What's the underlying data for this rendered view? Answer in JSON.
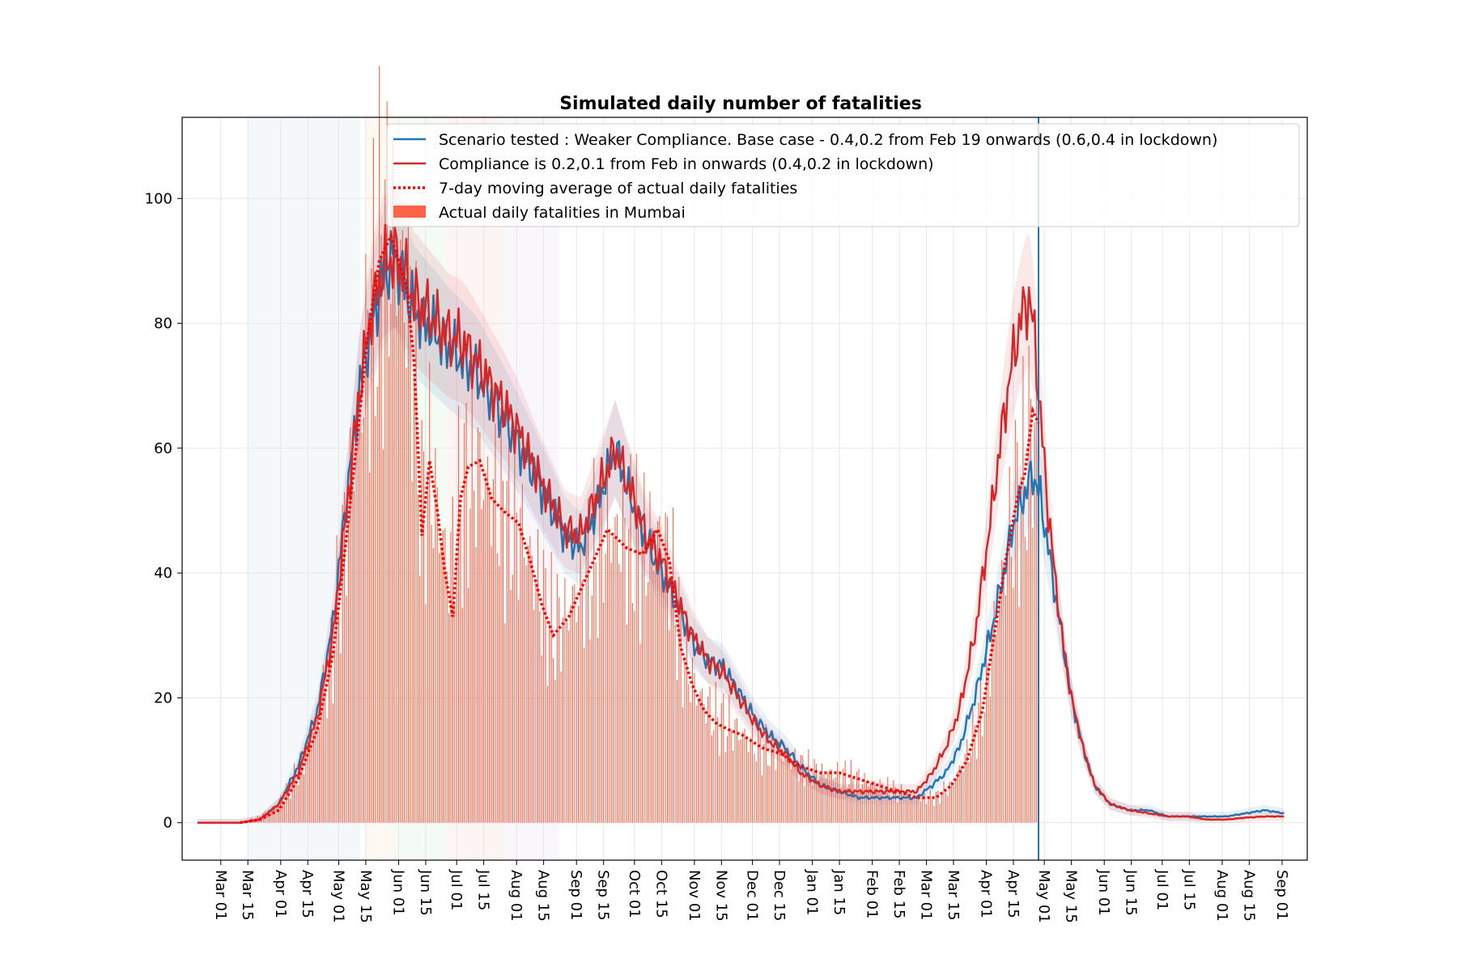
{
  "chart_data": {
    "type": "line",
    "title": "Simulated daily number of fatalities",
    "xlabel": "",
    "ylabel": "",
    "ylim": [
      -6,
      113
    ],
    "xlim_days": [
      -20,
      562
    ],
    "x_ticks": [
      "Mar 01",
      "Mar 15",
      "Apr 01",
      "Apr 15",
      "May 01",
      "May 15",
      "Jun 01",
      "Jun 15",
      "Jul 01",
      "Jul 15",
      "Aug 01",
      "Aug 15",
      "Sep 01",
      "Sep 15",
      "Oct 01",
      "Oct 15",
      "Nov 01",
      "Nov 15",
      "Dec 01",
      "Dec 15",
      "Jan 01",
      "Jan 15",
      "Feb 01",
      "Feb 15",
      "Mar 01",
      "Mar 15",
      "Apr 01",
      "Apr 15",
      "May 01",
      "May 15",
      "Jun 01",
      "Jun 15",
      "Jul 01",
      "Jul 15",
      "Aug 01",
      "Aug 15",
      "Sep 01"
    ],
    "x_tick_days": [
      0,
      14,
      31,
      45,
      61,
      75,
      92,
      106,
      122,
      136,
      153,
      167,
      184,
      198,
      214,
      228,
      245,
      259,
      275,
      289,
      306,
      320,
      337,
      351,
      365,
      379,
      396,
      410,
      426,
      440,
      457,
      471,
      487,
      501,
      518,
      532,
      549
    ],
    "y_ticks": [
      0,
      20,
      40,
      60,
      80,
      100
    ],
    "vline_day": 423,
    "shaded_regions": [
      {
        "start": 14,
        "end": 72,
        "color": "#1f77b4"
      },
      {
        "start": 75,
        "end": 89,
        "color": "#ff7f0e"
      },
      {
        "start": 89,
        "end": 117,
        "color": "#2ca02c"
      },
      {
        "start": 117,
        "end": 146,
        "color": "#d62728"
      },
      {
        "start": 146,
        "end": 175,
        "color": "#9467bd"
      }
    ],
    "series": [
      {
        "name": "Scenario tested : Weaker Compliance. Base case - 0.4,0.2 from Feb 19 onwards (0.6,0.4 in lockdown)",
        "style": "line",
        "color": "#1f77b4",
        "points": [
          [
            -12,
            0
          ],
          [
            10,
            0
          ],
          [
            20,
            0.5
          ],
          [
            30,
            3
          ],
          [
            40,
            9
          ],
          [
            50,
            18
          ],
          [
            58,
            32
          ],
          [
            65,
            52
          ],
          [
            72,
            70
          ],
          [
            78,
            80
          ],
          [
            84,
            87
          ],
          [
            90,
            91
          ],
          [
            95,
            86
          ],
          [
            100,
            82
          ],
          [
            106,
            80
          ],
          [
            112,
            78
          ],
          [
            118,
            76
          ],
          [
            125,
            74
          ],
          [
            132,
            72
          ],
          [
            140,
            68
          ],
          [
            148,
            64
          ],
          [
            155,
            60
          ],
          [
            162,
            56
          ],
          [
            170,
            51
          ],
          [
            178,
            46
          ],
          [
            186,
            44
          ],
          [
            194,
            50
          ],
          [
            204,
            60
          ],
          [
            212,
            52
          ],
          [
            220,
            45
          ],
          [
            228,
            40
          ],
          [
            236,
            35
          ],
          [
            244,
            29
          ],
          [
            252,
            26
          ],
          [
            260,
            25
          ],
          [
            268,
            21
          ],
          [
            276,
            17
          ],
          [
            284,
            14
          ],
          [
            292,
            12
          ],
          [
            300,
            9
          ],
          [
            310,
            6
          ],
          [
            320,
            5
          ],
          [
            330,
            4
          ],
          [
            340,
            4
          ],
          [
            350,
            4
          ],
          [
            360,
            4
          ],
          [
            368,
            6
          ],
          [
            375,
            8
          ],
          [
            382,
            12
          ],
          [
            390,
            20
          ],
          [
            398,
            30
          ],
          [
            405,
            40
          ],
          [
            410,
            48
          ],
          [
            415,
            52
          ],
          [
            420,
            56
          ],
          [
            424,
            52
          ],
          [
            428,
            44
          ],
          [
            432,
            36
          ],
          [
            436,
            28
          ],
          [
            440,
            20
          ],
          [
            446,
            12
          ],
          [
            452,
            6
          ],
          [
            460,
            3
          ],
          [
            470,
            2
          ],
          [
            480,
            2
          ],
          [
            490,
            1
          ],
          [
            500,
            1
          ],
          [
            510,
            1
          ],
          [
            520,
            1
          ],
          [
            530,
            1.5
          ],
          [
            540,
            2
          ],
          [
            550,
            1.5
          ]
        ]
      },
      {
        "name": "Compliance is 0.2,0.1 from Feb in onwards (0.4,0.2 in lockdown)",
        "style": "line",
        "color": "#d62728",
        "points": [
          [
            -12,
            0
          ],
          [
            10,
            0
          ],
          [
            20,
            0.5
          ],
          [
            30,
            3
          ],
          [
            40,
            8
          ],
          [
            50,
            17
          ],
          [
            58,
            30
          ],
          [
            65,
            50
          ],
          [
            72,
            70
          ],
          [
            78,
            82
          ],
          [
            84,
            89
          ],
          [
            90,
            91
          ],
          [
            95,
            88
          ],
          [
            100,
            84
          ],
          [
            106,
            82
          ],
          [
            112,
            80
          ],
          [
            118,
            78
          ],
          [
            125,
            77
          ],
          [
            132,
            74
          ],
          [
            140,
            70
          ],
          [
            148,
            66
          ],
          [
            155,
            62
          ],
          [
            162,
            57
          ],
          [
            170,
            52
          ],
          [
            178,
            47
          ],
          [
            186,
            46
          ],
          [
            194,
            52
          ],
          [
            204,
            60
          ],
          [
            212,
            53
          ],
          [
            220,
            46
          ],
          [
            228,
            42
          ],
          [
            236,
            36
          ],
          [
            244,
            30
          ],
          [
            252,
            26
          ],
          [
            260,
            24
          ],
          [
            268,
            20
          ],
          [
            276,
            16
          ],
          [
            284,
            13
          ],
          [
            292,
            11
          ],
          [
            300,
            8
          ],
          [
            310,
            6
          ],
          [
            320,
            5
          ],
          [
            330,
            5
          ],
          [
            340,
            5
          ],
          [
            350,
            5
          ],
          [
            360,
            5
          ],
          [
            368,
            8
          ],
          [
            375,
            12
          ],
          [
            382,
            18
          ],
          [
            390,
            30
          ],
          [
            398,
            48
          ],
          [
            405,
            65
          ],
          [
            410,
            75
          ],
          [
            415,
            82
          ],
          [
            418,
            84
          ],
          [
            421,
            78
          ],
          [
            424,
            65
          ],
          [
            428,
            50
          ],
          [
            432,
            38
          ],
          [
            436,
            28
          ],
          [
            440,
            20
          ],
          [
            446,
            12
          ],
          [
            452,
            6
          ],
          [
            460,
            3
          ],
          [
            470,
            2
          ],
          [
            480,
            1.5
          ],
          [
            490,
            1
          ],
          [
            500,
            1
          ],
          [
            510,
            0.5
          ],
          [
            520,
            0.5
          ],
          [
            530,
            0.8
          ],
          [
            540,
            1
          ],
          [
            550,
            1
          ]
        ]
      },
      {
        "name": "7-day moving average of actual daily fatalities",
        "style": "dotted",
        "color": "#ff0000",
        "points": [
          [
            10,
            0
          ],
          [
            20,
            0.5
          ],
          [
            30,
            2
          ],
          [
            40,
            7
          ],
          [
            50,
            15
          ],
          [
            58,
            27
          ],
          [
            64,
            43
          ],
          [
            70,
            60
          ],
          [
            76,
            78
          ],
          [
            82,
            90
          ],
          [
            88,
            94
          ],
          [
            92,
            90
          ],
          [
            96,
            86
          ],
          [
            100,
            74
          ],
          [
            104,
            46
          ],
          [
            108,
            58
          ],
          [
            112,
            50
          ],
          [
            116,
            40
          ],
          [
            120,
            33
          ],
          [
            124,
            52
          ],
          [
            128,
            57
          ],
          [
            134,
            58
          ],
          [
            140,
            52
          ],
          [
            146,
            50
          ],
          [
            154,
            48
          ],
          [
            160,
            42
          ],
          [
            166,
            35
          ],
          [
            172,
            30
          ],
          [
            180,
            33
          ],
          [
            190,
            40
          ],
          [
            200,
            47
          ],
          [
            210,
            44
          ],
          [
            218,
            43
          ],
          [
            226,
            47
          ],
          [
            232,
            42
          ],
          [
            238,
            28
          ],
          [
            244,
            22
          ],
          [
            250,
            18
          ],
          [
            256,
            16
          ],
          [
            262,
            15
          ],
          [
            270,
            14
          ],
          [
            280,
            12
          ],
          [
            290,
            11
          ],
          [
            300,
            9
          ],
          [
            310,
            8
          ],
          [
            320,
            8
          ],
          [
            330,
            7
          ],
          [
            340,
            6
          ],
          [
            350,
            5
          ],
          [
            360,
            4
          ],
          [
            370,
            4
          ],
          [
            378,
            6
          ],
          [
            386,
            10
          ],
          [
            394,
            18
          ],
          [
            400,
            30
          ],
          [
            406,
            42
          ],
          [
            412,
            52
          ],
          [
            416,
            56
          ],
          [
            420,
            66
          ],
          [
            423,
            64
          ]
        ]
      }
    ],
    "bars": {
      "name": "Actual daily fatalities in Mumbai",
      "color": "#ff6347",
      "day_range": [
        10,
        423
      ],
      "envelope": [
        [
          10,
          0
        ],
        [
          20,
          1
        ],
        [
          30,
          3
        ],
        [
          40,
          8
        ],
        [
          50,
          16
        ],
        [
          58,
          28
        ],
        [
          64,
          45
        ],
        [
          70,
          62
        ],
        [
          76,
          78
        ],
        [
          82,
          90
        ],
        [
          88,
          94
        ],
        [
          92,
          90
        ],
        [
          96,
          85
        ],
        [
          100,
          73
        ],
        [
          104,
          50
        ],
        [
          108,
          57
        ],
        [
          112,
          50
        ],
        [
          118,
          40
        ],
        [
          124,
          52
        ],
        [
          132,
          57
        ],
        [
          140,
          53
        ],
        [
          148,
          50
        ],
        [
          156,
          47
        ],
        [
          164,
          38
        ],
        [
          172,
          31
        ],
        [
          180,
          34
        ],
        [
          190,
          41
        ],
        [
          200,
          47
        ],
        [
          210,
          45
        ],
        [
          218,
          44
        ],
        [
          226,
          46
        ],
        [
          232,
          42
        ],
        [
          238,
          29
        ],
        [
          246,
          21
        ],
        [
          256,
          17
        ],
        [
          266,
          15
        ],
        [
          280,
          12
        ],
        [
          290,
          11
        ],
        [
          300,
          9
        ],
        [
          310,
          8
        ],
        [
          320,
          8
        ],
        [
          330,
          7
        ],
        [
          340,
          6
        ],
        [
          350,
          5
        ],
        [
          360,
          4
        ],
        [
          370,
          4
        ],
        [
          378,
          6
        ],
        [
          386,
          11
        ],
        [
          394,
          19
        ],
        [
          400,
          31
        ],
        [
          406,
          43
        ],
        [
          412,
          53
        ],
        [
          416,
          56
        ],
        [
          420,
          64
        ],
        [
          423,
          60
        ]
      ]
    },
    "legend": [
      "Scenario tested : Weaker Compliance. Base case - 0.4,0.2 from Feb 19 onwards (0.6,0.4 in lockdown)",
      "Compliance is 0.2,0.1 from Feb in onwards (0.4,0.2 in lockdown)",
      "7-day moving average of actual daily fatalities",
      "Actual daily fatalities in Mumbai"
    ],
    "legend_position": "top-right"
  }
}
